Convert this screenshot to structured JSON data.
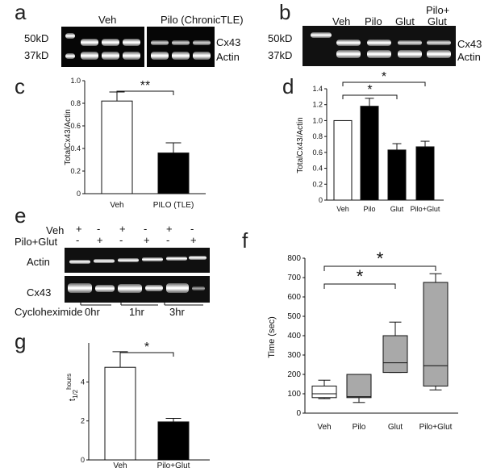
{
  "panel_a": {
    "letter": "a",
    "group_veh": "Veh",
    "group_pilo": "Pilo (ChronicTLE)",
    "marker_50": "50kD",
    "marker_37": "37kD",
    "band_cx43": "Cx43",
    "band_actin": "Actin"
  },
  "panel_b": {
    "letter": "b",
    "lanes": [
      "Veh",
      "Pilo",
      "Glut"
    ],
    "lane4_line1": "Pilo+",
    "lane4_line2": "Glut",
    "marker_50": "50kD",
    "marker_37": "37kD",
    "band_cx43": "Cx43",
    "band_actin": "Actin"
  },
  "panel_e": {
    "letter": "e",
    "row_veh": "Veh",
    "row_pg": "Pilo+Glut",
    "veh_signs": [
      "+",
      "-",
      "+",
      "-",
      "+",
      "-"
    ],
    "pg_signs": [
      "-",
      "+",
      "-",
      "+",
      "-",
      "+"
    ],
    "band_actin": "Actin",
    "band_cx43": "Cx43",
    "cyclo_label": "Cycloheximide",
    "times": [
      "0hr",
      "1hr",
      "3hr"
    ]
  },
  "chart_data": [
    {
      "panel": "c",
      "type": "bar",
      "categories": [
        "Veh",
        "PILO (TLE)"
      ],
      "values": [
        0.82,
        0.36
      ],
      "errors": [
        0.08,
        0.09
      ],
      "colors": [
        "#ffffff",
        "#000000"
      ],
      "ylabel": "TotalCx43/Actin",
      "ylim": [
        0,
        1.0
      ],
      "yticks": [
        "0",
        "0.2",
        "0.4",
        "0.6",
        "0.8",
        "1.0"
      ],
      "significance": [
        {
          "pair": [
            0,
            1
          ],
          "label": "**"
        }
      ]
    },
    {
      "panel": "d",
      "type": "bar",
      "categories": [
        "Veh",
        "Pilo",
        "Glut",
        "Pilo+Glut"
      ],
      "values": [
        1.0,
        1.18,
        0.63,
        0.67
      ],
      "errors": [
        0.0,
        0.1,
        0.08,
        0.07
      ],
      "colors": [
        "#ffffff",
        "#000000",
        "#000000",
        "#000000"
      ],
      "ylabel": "TotalCx43/Actin",
      "ylim": [
        0,
        1.4
      ],
      "yticks": [
        "0",
        "0.2",
        "0.4",
        "0.6",
        "0.8",
        "1.0",
        "1.2",
        "1.4"
      ],
      "significance": [
        {
          "pair": [
            0,
            2
          ],
          "label": "*"
        },
        {
          "pair": [
            0,
            3
          ],
          "label": "*"
        }
      ]
    },
    {
      "panel": "g",
      "type": "bar",
      "categories": [
        "Veh",
        "Pilo+Glut"
      ],
      "values": [
        4.75,
        1.95
      ],
      "errors": [
        0.8,
        0.18
      ],
      "colors": [
        "#ffffff",
        "#000000"
      ],
      "ylabel_main": "t",
      "ylabel_sub": "1/2",
      "ylabel_sup": "hours",
      "ylim": [
        0,
        6
      ],
      "yticks": [
        "0",
        "2",
        "4"
      ],
      "significance": [
        {
          "pair": [
            0,
            1
          ],
          "label": "*"
        }
      ]
    },
    {
      "panel": "f",
      "type": "box",
      "categories": [
        "Veh",
        "Pilo",
        "Glut",
        "Pilo+Glut"
      ],
      "boxes": [
        {
          "min": 75,
          "q1": 80,
          "median": 100,
          "q3": 140,
          "max": 170
        },
        {
          "min": 55,
          "q1": 80,
          "median": 85,
          "q3": 200,
          "max": 200
        },
        {
          "min": 210,
          "q1": 210,
          "median": 260,
          "q3": 400,
          "max": 470
        },
        {
          "min": 120,
          "q1": 140,
          "median": 245,
          "q3": 675,
          "max": 720
        }
      ],
      "colors": [
        "#ffffff",
        "#a9a9a9",
        "#a9a9a9",
        "#a9a9a9"
      ],
      "ylabel": "Time (sec)",
      "ylim": [
        0,
        800
      ],
      "yticks": [
        "0",
        "100",
        "200",
        "300",
        "400",
        "500",
        "600",
        "700",
        "800"
      ],
      "significance": [
        {
          "pair": [
            0,
            2
          ],
          "label": "*"
        },
        {
          "pair": [
            0,
            3
          ],
          "label": "*"
        }
      ]
    }
  ]
}
